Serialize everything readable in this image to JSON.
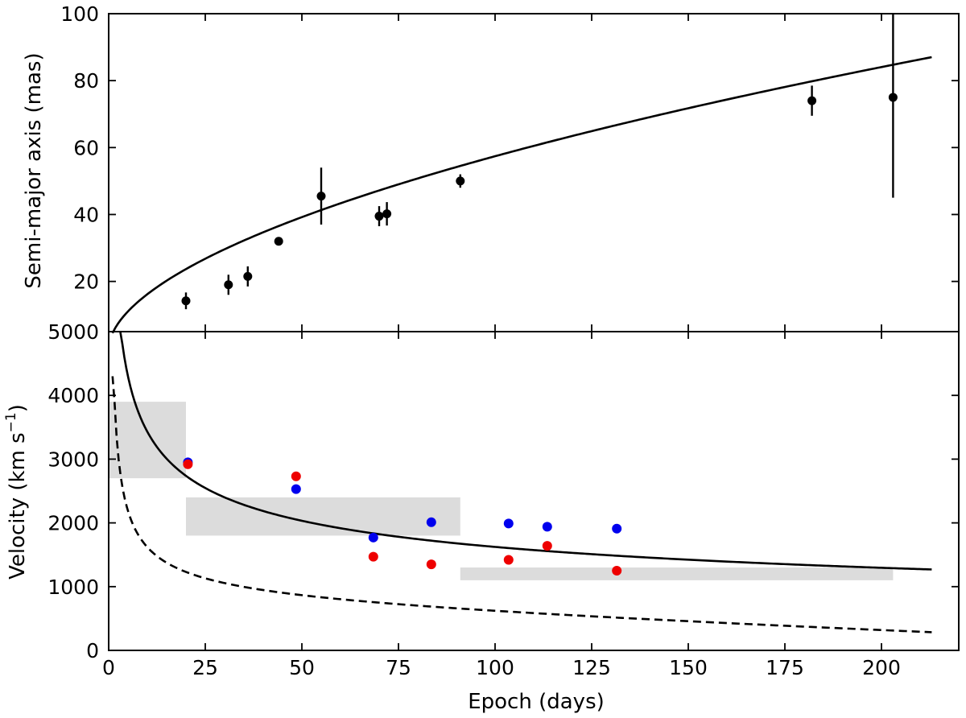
{
  "chart_data": {
    "panels": [
      {
        "type": "scatter",
        "ylabel": "Semi-major axis (mas)",
        "xlim": [
          0,
          220
        ],
        "ylim": [
          5,
          100
        ],
        "yticks": [
          {
            "value": 20,
            "label": "20"
          },
          {
            "value": 40,
            "label": "40"
          },
          {
            "value": 60,
            "label": "60"
          },
          {
            "value": 80,
            "label": "80"
          },
          {
            "value": 100,
            "label": "100"
          }
        ],
        "points": [
          {
            "x": 20,
            "y": 14.2,
            "err": 2.5
          },
          {
            "x": 31,
            "y": 19,
            "err": 3
          },
          {
            "x": 36,
            "y": 21.5,
            "err": 3
          },
          {
            "x": 44,
            "y": 32,
            "err": 1
          },
          {
            "x": 55,
            "y": 45.5,
            "err": 8.5
          },
          {
            "x": 70,
            "y": 39.5,
            "err": 3
          },
          {
            "x": 72,
            "y": 40.2,
            "err": 3.5
          },
          {
            "x": 91,
            "y": 50,
            "err": 2
          },
          {
            "x": 182,
            "y": 74,
            "err": 4.5
          },
          {
            "x": 203,
            "y": 75,
            "err": 30
          }
        ],
        "fit": {
          "style": "solid",
          "amplitude": 4.56,
          "exponent": 0.55,
          "x_range": [
            1,
            213
          ]
        },
        "point_color": "#000000"
      },
      {
        "type": "scatter",
        "xlabel": "Epoch (days)",
        "ylabel_main": "Velocity (km s",
        "ylabel_sup": "−1",
        "ylabel_close": ")",
        "xlim": [
          0,
          220
        ],
        "ylim": [
          0,
          5000
        ],
        "yticks": [
          {
            "value": 0,
            "label": "0"
          },
          {
            "value": 1000,
            "label": "1000"
          },
          {
            "value": 2000,
            "label": "2000"
          },
          {
            "value": 3000,
            "label": "3000"
          },
          {
            "value": 4000,
            "label": "4000"
          },
          {
            "value": 5000,
            "label": "5000"
          }
        ],
        "xticks": [
          {
            "value": 0,
            "label": "0"
          },
          {
            "value": 25,
            "label": "25"
          },
          {
            "value": 50,
            "label": "50"
          },
          {
            "value": 75,
            "label": "75"
          },
          {
            "value": 100,
            "label": "100"
          },
          {
            "value": 125,
            "label": "125"
          },
          {
            "value": 150,
            "label": "150"
          },
          {
            "value": 175,
            "label": "175"
          },
          {
            "value": 200,
            "label": "200"
          }
        ],
        "shaded_regions": [
          {
            "x0": 0,
            "x1": 20,
            "y0": 2700,
            "y1": 3900
          },
          {
            "x0": 20,
            "x1": 91,
            "y0": 1800,
            "y1": 2400
          },
          {
            "x0": 91,
            "x1": 203,
            "y0": 1100,
            "y1": 1300
          }
        ],
        "series": [
          {
            "color": "#0000ee",
            "points": [
              {
                "x": 20.5,
                "y": 2950
              },
              {
                "x": 48.5,
                "y": 2530
              },
              {
                "x": 68.5,
                "y": 1770
              },
              {
                "x": 83.5,
                "y": 2010
              },
              {
                "x": 103.5,
                "y": 1990
              },
              {
                "x": 113.5,
                "y": 1940
              },
              {
                "x": 131.5,
                "y": 1910
              }
            ]
          },
          {
            "color": "#ee0000",
            "points": [
              {
                "x": 20.5,
                "y": 2920
              },
              {
                "x": 48.5,
                "y": 2730
              },
              {
                "x": 68.5,
                "y": 1470
              },
              {
                "x": 83.5,
                "y": 1350
              },
              {
                "x": 103.5,
                "y": 1420
              },
              {
                "x": 113.5,
                "y": 1640
              },
              {
                "x": 131.5,
                "y": 1250
              }
            ]
          }
        ],
        "curves": [
          {
            "style": "solid",
            "amplitude": 7250,
            "exponent": -0.325,
            "x_range": [
              3,
              213
            ]
          },
          {
            "style": "dashed",
            "amplitude": 4300,
            "x_range": [
              1,
              213
            ]
          }
        ],
        "shade_color": "#dcdcdc"
      }
    ]
  }
}
